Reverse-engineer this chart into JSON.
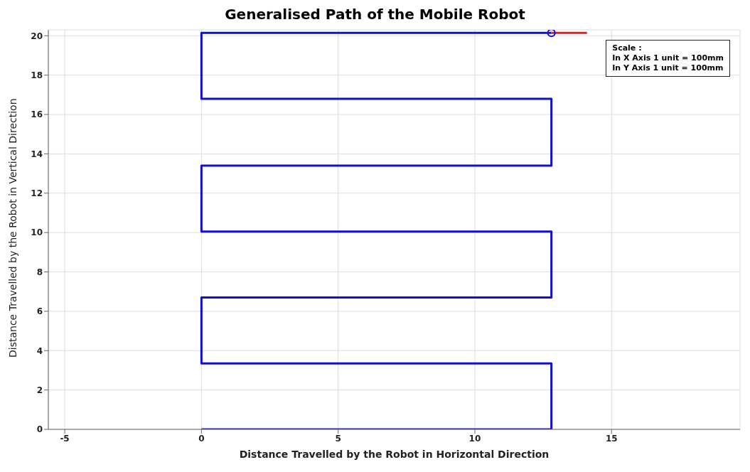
{
  "chart_data": {
    "type": "line",
    "title": "Generalised Path of the Mobile Robot",
    "xlabel": "Distance Travelled by the Robot in Horizontal Direction",
    "ylabel": "Distance Travelled by the Robot in Vertical Direction",
    "xlim": [
      -5.6,
      19.7
    ],
    "xticks": [
      -5,
      0,
      5,
      10,
      15
    ],
    "ylim": [
      0,
      20.3
    ],
    "yticks": [
      0,
      2,
      4,
      6,
      8,
      10,
      12,
      14,
      16,
      18,
      20
    ],
    "grid": true,
    "line_style": "solid",
    "series": [
      {
        "marker": "none",
        "color": "#1010d0",
        "x": [
          0,
          12.8,
          12.8,
          0,
          0,
          12.8,
          12.8,
          0,
          0,
          12.8,
          12.8,
          0,
          0,
          12.8
        ],
        "values": [
          0,
          0,
          3.35,
          3.35,
          6.7,
          6.7,
          10.05,
          10.05,
          13.4,
          13.4,
          16.8,
          16.8,
          20.15,
          20.15
        ]
      },
      {
        "marker": "none",
        "color": "#e02020",
        "x": [
          12.8,
          14.1
        ],
        "values": [
          20.15,
          20.15
        ]
      },
      {
        "type": "scatter",
        "marker": "circle",
        "color": "#1010d0",
        "x": [
          12.8
        ],
        "values": [
          20.15
        ]
      }
    ],
    "annotations": [
      "Scale :",
      "In X Axis 1 unit = 100mm",
      "In Y Axis 1 unit = 100mm"
    ]
  }
}
